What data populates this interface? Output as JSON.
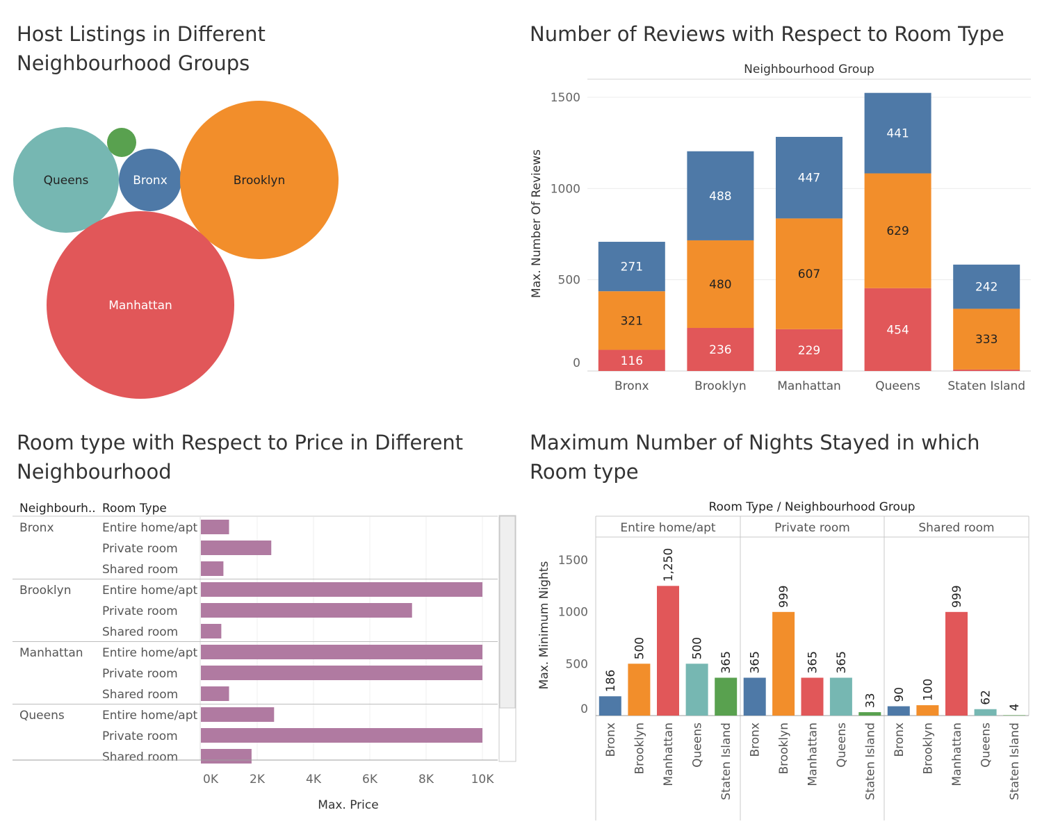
{
  "colors": {
    "bronx": "#4e79a7",
    "brooklyn": "#f28e2b",
    "manhattan": "#e15759",
    "queens": "#76b7b2",
    "staten_island": "#59a14f",
    "price_bar": "#b07aa1"
  },
  "chart_data": [
    {
      "id": "bubbles",
      "type": "bubble",
      "title": "Host Listings in Different Neighbourhood Groups",
      "points": [
        {
          "name": "Queens",
          "color": "#76b7b2",
          "label": "Queens"
        },
        {
          "name": "Staten Island",
          "color": "#59a14f",
          "label": ""
        },
        {
          "name": "Bronx",
          "color": "#4e79a7",
          "label": "Bronx"
        },
        {
          "name": "Brooklyn",
          "color": "#f28e2b",
          "label": "Brooklyn"
        },
        {
          "name": "Manhattan",
          "color": "#e15759",
          "label": "Manhattan"
        }
      ]
    },
    {
      "id": "reviews",
      "type": "bar",
      "stacked": true,
      "title": "Number of Reviews with Respect to Room Type",
      "header": "Neighbourhood Group",
      "ylabel": "Max. Number Of Reviews",
      "ylim": [
        0,
        1500
      ],
      "yticks": [
        0,
        500,
        1000,
        1500
      ],
      "categories": [
        "Bronx",
        "Brooklyn",
        "Manhattan",
        "Queens",
        "Staten Island"
      ],
      "series": [
        {
          "color": "#e15759",
          "values": [
            116,
            236,
            229,
            454,
            8
          ],
          "labels": [
            "116",
            "236",
            "229",
            "454",
            ""
          ]
        },
        {
          "color": "#f28e2b",
          "values": [
            321,
            480,
            607,
            629,
            333
          ],
          "labels": [
            "321",
            "480",
            "607",
            "629",
            "333"
          ]
        },
        {
          "color": "#4e79a7",
          "values": [
            271,
            488,
            447,
            441,
            242
          ],
          "labels": [
            "271",
            "488",
            "447",
            "441",
            "242"
          ]
        }
      ]
    },
    {
      "id": "price",
      "type": "bar",
      "orientation": "horizontal",
      "title": "Room type with Respect to Price in Different Neighbourhood",
      "col_headers": [
        "Neighbourh..",
        "Room Type"
      ],
      "xlabel": "Max. Price",
      "xlim": [
        0,
        10000
      ],
      "xticks": [
        0,
        2000,
        4000,
        6000,
        8000,
        10000
      ],
      "xtick_labels": [
        "0K",
        "2K",
        "4K",
        "6K",
        "8K",
        "10K"
      ],
      "groups": [
        {
          "name": "Bronx",
          "rows": [
            {
              "room": "Entire home/apt",
              "value": 1000
            },
            {
              "room": "Private room",
              "value": 2500
            },
            {
              "room": "Shared room",
              "value": 800
            }
          ]
        },
        {
          "name": "Brooklyn",
          "rows": [
            {
              "room": "Entire home/apt",
              "value": 10000
            },
            {
              "room": "Private room",
              "value": 7500
            },
            {
              "room": "Shared room",
              "value": 725
            }
          ]
        },
        {
          "name": "Manhattan",
          "rows": [
            {
              "room": "Entire home/apt",
              "value": 10000
            },
            {
              "room": "Private room",
              "value": 10000
            },
            {
              "room": "Shared room",
              "value": 1000
            }
          ]
        },
        {
          "name": "Queens",
          "rows": [
            {
              "room": "Entire home/apt",
              "value": 2600
            },
            {
              "room": "Private room",
              "value": 10000
            },
            {
              "room": "Shared room",
              "value": 1800
            }
          ]
        }
      ]
    },
    {
      "id": "nights",
      "type": "bar",
      "title": "Maximum Number of Nights Stayed in which Room type",
      "header": "Room Type  /  Neighbourhood Group",
      "ylabel": "Max. Minimum Nights",
      "ylim": [
        0,
        1500
      ],
      "yticks": [
        0,
        500,
        1000,
        1500
      ],
      "categories": [
        "Bronx",
        "Brooklyn",
        "Manhattan",
        "Queens",
        "Staten Island"
      ],
      "cat_colors": [
        "#4e79a7",
        "#f28e2b",
        "#e15759",
        "#76b7b2",
        "#59a14f"
      ],
      "panes": [
        {
          "name": "Entire home/apt",
          "values": [
            186,
            500,
            1250,
            500,
            365
          ],
          "labels": [
            "186",
            "500",
            "1,250",
            "500",
            "365"
          ]
        },
        {
          "name": "Private room",
          "values": [
            365,
            999,
            365,
            365,
            33
          ],
          "labels": [
            "365",
            "999",
            "365",
            "365",
            "33"
          ]
        },
        {
          "name": "Shared room",
          "values": [
            90,
            100,
            999,
            62,
            4
          ],
          "labels": [
            "90",
            "100",
            "999",
            "62",
            "4"
          ]
        }
      ]
    }
  ]
}
